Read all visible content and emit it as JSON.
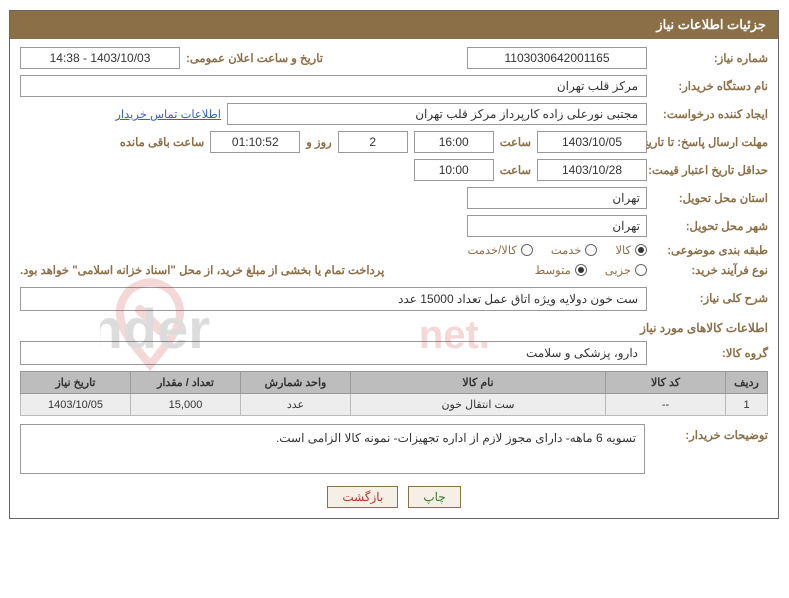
{
  "header": {
    "title": "جزئیات اطلاعات نیاز"
  },
  "fields": {
    "need_no_label": "شماره نیاز:",
    "need_no": "1103030642001165",
    "announce_label": "تاریخ و ساعت اعلان عمومی:",
    "announce": "1403/10/03 - 14:38",
    "buyer_org_label": "نام دستگاه خریدار:",
    "buyer_org": "مرکز قلب تهران",
    "requester_label": "ایجاد کننده درخواست:",
    "requester": "مجتبی نورعلی زاده کارپرداز مرکز قلب تهران",
    "contact_link": "اطلاعات تماس خریدار",
    "deadline_label": "مهلت ارسال پاسخ: تا تاریخ:",
    "deadline_date": "1403/10/05",
    "time_word": "ساعت",
    "deadline_time": "16:00",
    "days_count": "2",
    "days_and": "روز و",
    "countdown": "01:10:52",
    "remaining": "ساعت باقی مانده",
    "validity_label": "حداقل تاریخ اعتبار قیمت: تا تاریخ:",
    "validity_date": "1403/10/28",
    "validity_time": "10:00",
    "province_label": "استان محل تحویل:",
    "province": "تهران",
    "city_label": "شهر محل تحویل:",
    "city": "تهران",
    "category_label": "طبقه بندی موضوعی:",
    "cat_goods": "کالا",
    "cat_service": "خدمت",
    "cat_both": "کالا/خدمت",
    "process_label": "نوع فرآیند خرید:",
    "proc_small": "جزیی",
    "proc_medium": "متوسط",
    "payment_note": "پرداخت تمام یا بخشی از مبلغ خرید، از محل \"اسناد خزانه اسلامی\" خواهد بود.",
    "overall_label": "شرح کلی نیاز:",
    "overall_desc": "ست خون دولایه ویژه اتاق عمل تعداد 15000 عدد",
    "items_title": "اطلاعات کالاهای مورد نیاز",
    "group_label": "گروه کالا:",
    "group": "دارو، پزشکی و سلامت",
    "buyer_notes_label": "توضیحات خریدار:",
    "buyer_notes": "تسویه 6 ماهه- دارای مجوز لازم از اداره تجهیزات- نمونه کالا الزامی است."
  },
  "table": {
    "headers": {
      "row": "ردیف",
      "code": "کد کالا",
      "name": "نام کالا",
      "unit": "واحد شمارش",
      "qty": "تعداد / مقدار",
      "date": "تاریخ نیاز"
    },
    "rows": [
      {
        "row": "1",
        "code": "--",
        "name": "ست انتقال خون",
        "unit": "عدد",
        "qty": "15,000",
        "date": "1403/10/05"
      }
    ],
    "col_widths": {
      "row": "42px",
      "code": "120px",
      "name": "auto",
      "unit": "110px",
      "qty": "110px",
      "date": "110px"
    }
  },
  "buttons": {
    "print": "چاپ",
    "back": "بازگشت"
  },
  "styling": {
    "header_bg": "#8b6f47",
    "header_fg": "#ffffff",
    "label_color": "#8b6f47",
    "border_color": "#999999",
    "table_header_bg": "#bdbdbd",
    "table_row_bg": "#ededed",
    "btn_bg": "#f5efe5",
    "btn_border": "#8b6f47",
    "radio_checked": {
      "category": "کالا",
      "process": "متوسط"
    }
  }
}
